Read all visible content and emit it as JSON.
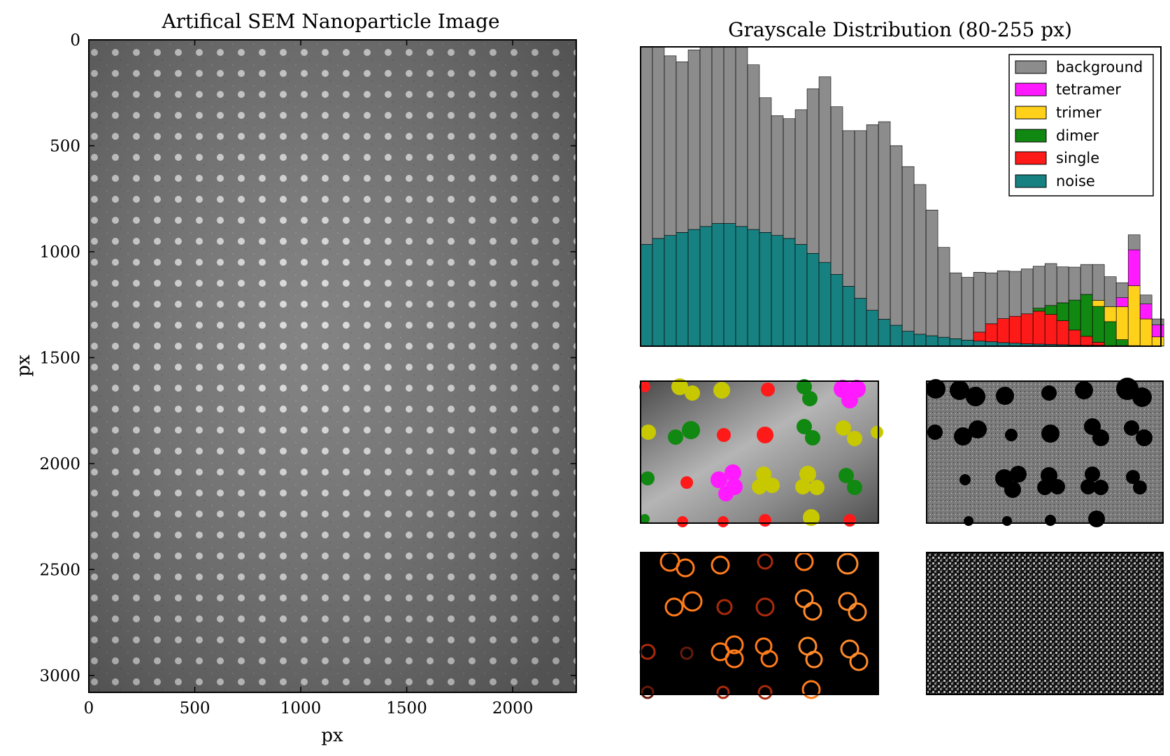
{
  "colors": {
    "background": "#8c8c8c",
    "tetramer": "#ff1aff",
    "trimer": "#ffd11a",
    "dimer": "#118811",
    "single": "#ff1a1a",
    "noise": "#178080",
    "frame": "#000000"
  },
  "chart_data": [
    {
      "type": "image",
      "title": "Artifical SEM Nanoparticle Image",
      "xlabel": "px",
      "ylabel": "px",
      "xlim": [
        0,
        2300
      ],
      "ylim": [
        3080,
        0
      ],
      "xticks": [
        "0",
        "500",
        "1000",
        "1500",
        "2000"
      ],
      "yticks": [
        "0",
        "500",
        "1000",
        "1500",
        "2000",
        "2500",
        "3000"
      ],
      "xtick_values": [
        0,
        500,
        1000,
        1500,
        2000
      ],
      "ytick_values": [
        0,
        500,
        1000,
        1500,
        2000,
        2500,
        3000
      ],
      "colormap": "gray"
    },
    {
      "type": "histogram",
      "stacked": true,
      "title": "Grayscale Distribution (80-255 px)",
      "xlim": [
        80,
        255
      ],
      "legend_position": "top-right",
      "legend": [
        "background",
        "tetramer",
        "trimer",
        "dimer",
        "single",
        "noise"
      ],
      "bins_x": [
        80,
        84,
        88,
        92,
        96,
        100,
        104,
        108,
        112,
        116,
        120,
        124,
        128,
        132,
        136,
        140,
        144,
        148,
        152,
        156,
        160,
        164,
        168,
        172,
        176,
        180,
        184,
        188,
        192,
        196,
        200,
        204,
        208,
        212,
        216,
        220,
        224,
        228,
        232,
        236,
        240,
        244,
        248,
        252
      ],
      "series": [
        {
          "name": "noise",
          "values": [
            0.34,
            0.36,
            0.37,
            0.38,
            0.39,
            0.4,
            0.41,
            0.41,
            0.4,
            0.39,
            0.38,
            0.37,
            0.36,
            0.34,
            0.31,
            0.28,
            0.24,
            0.2,
            0.16,
            0.12,
            0.09,
            0.07,
            0.05,
            0.04,
            0.035,
            0.03,
            0.025,
            0.02,
            0.017,
            0.015,
            0.012,
            0.01,
            0.008,
            0.007,
            0.006,
            0.005,
            0.004,
            0.003,
            0.003,
            0.002,
            0.002,
            0.002,
            0.001,
            0.001
          ]
        },
        {
          "name": "single",
          "values": [
            0,
            0,
            0,
            0,
            0,
            0,
            0,
            0,
            0,
            0,
            0,
            0,
            0,
            0,
            0,
            0,
            0,
            0,
            0,
            0,
            0,
            0,
            0,
            0,
            0,
            0,
            0,
            0,
            0.03,
            0.06,
            0.08,
            0.09,
            0.1,
            0.11,
            0.1,
            0.08,
            0.05,
            0.03,
            0.01,
            0,
            0,
            0,
            0,
            0
          ]
        },
        {
          "name": "dimer",
          "values": [
            0,
            0,
            0,
            0,
            0,
            0,
            0,
            0,
            0,
            0,
            0,
            0,
            0,
            0,
            0,
            0,
            0,
            0,
            0,
            0,
            0,
            0,
            0,
            0,
            0,
            0,
            0,
            0,
            0,
            0,
            0,
            0,
            0,
            0.01,
            0.03,
            0.06,
            0.1,
            0.14,
            0.12,
            0.08,
            0.02,
            0,
            0,
            0
          ]
        },
        {
          "name": "trimer",
          "values": [
            0,
            0,
            0,
            0,
            0,
            0,
            0,
            0,
            0,
            0,
            0,
            0,
            0,
            0,
            0,
            0,
            0,
            0,
            0,
            0,
            0,
            0,
            0,
            0,
            0,
            0,
            0,
            0,
            0,
            0,
            0,
            0,
            0,
            0,
            0,
            0,
            0,
            0,
            0.02,
            0.05,
            0.11,
            0.2,
            0.09,
            0.03
          ]
        },
        {
          "name": "tetramer",
          "values": [
            0,
            0,
            0,
            0,
            0,
            0,
            0,
            0,
            0,
            0,
            0,
            0,
            0,
            0,
            0,
            0,
            0,
            0,
            0,
            0,
            0,
            0,
            0,
            0,
            0,
            0,
            0,
            0,
            0,
            0,
            0,
            0,
            0,
            0,
            0,
            0,
            0,
            0,
            0,
            0,
            0.03,
            0.12,
            0.05,
            0.04
          ]
        },
        {
          "name": "background",
          "values": [
            0.66,
            0.64,
            0.6,
            0.57,
            0.6,
            0.68,
            0.78,
            0.8,
            0.7,
            0.55,
            0.45,
            0.4,
            0.4,
            0.45,
            0.55,
            0.62,
            0.56,
            0.52,
            0.56,
            0.62,
            0.66,
            0.6,
            0.55,
            0.5,
            0.42,
            0.3,
            0.22,
            0.21,
            0.2,
            0.17,
            0.16,
            0.15,
            0.15,
            0.14,
            0.14,
            0.12,
            0.11,
            0.1,
            0.12,
            0.1,
            0.05,
            0.05,
            0.03,
            0.02
          ]
        }
      ]
    }
  ],
  "panels": {
    "classified_label": "particle classification",
    "mask_label": "background mask",
    "edges_label": "edge detection",
    "noise_label": "noise"
  }
}
